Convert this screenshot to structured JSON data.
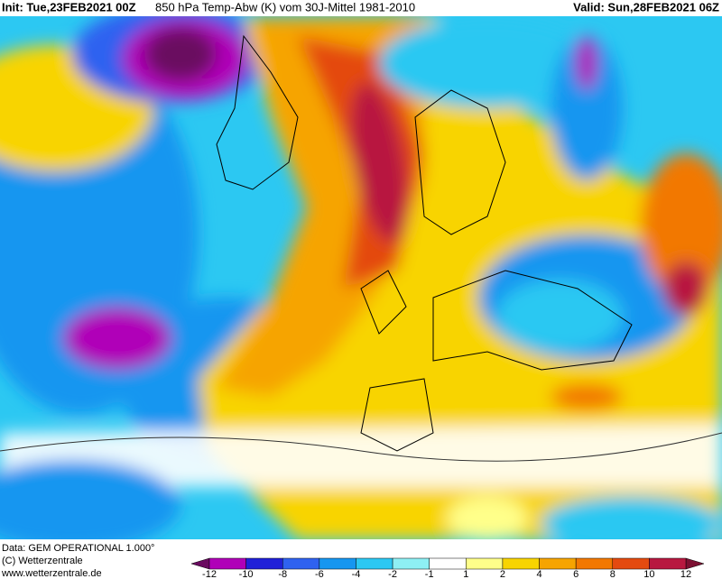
{
  "header": {
    "init": "Init: Tue,23FEB2021 00Z",
    "title": "850 hPa Temp-Abw (K) vom 30J-Mittel 1981-2010",
    "valid": "Valid: Sun,28FEB2021 06Z"
  },
  "footer": {
    "source": "Data: GEM OPERATIONAL 1.000°",
    "copyright": "(C) Wetterzentrale",
    "url": "www.wetterzentrale.de"
  },
  "colorbar": {
    "ticks": [
      -12,
      -10,
      -8,
      -6,
      -4,
      -2,
      -1,
      1,
      2,
      4,
      6,
      8,
      10,
      12
    ],
    "colors": [
      "#6a0a60",
      "#b000b8",
      "#2020d8",
      "#2f62f0",
      "#1696f0",
      "#2cc8f2",
      "#8ef0f4",
      "#ffffff",
      "#ffff8a",
      "#f8d400",
      "#f6a400",
      "#f27800",
      "#e44a10",
      "#b81840",
      "#7c1032"
    ]
  }
}
